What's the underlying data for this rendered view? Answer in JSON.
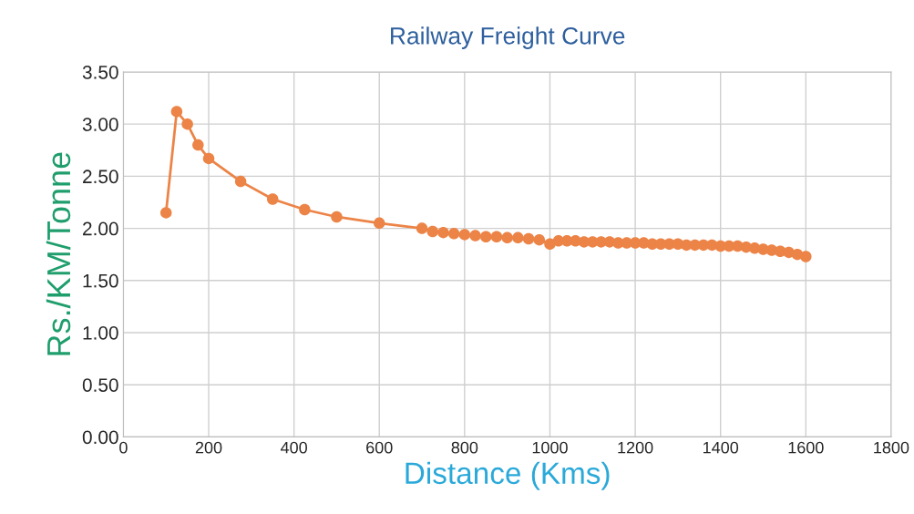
{
  "chart_data": {
    "type": "line",
    "title": "Railway Freight Curve",
    "xlabel": "Distance (Kms)",
    "ylabel": "Rs./KM/Tonne",
    "x": [
      100,
      125,
      150,
      175,
      200,
      275,
      350,
      425,
      500,
      600,
      700,
      725,
      750,
      775,
      800,
      825,
      850,
      875,
      900,
      925,
      950,
      975,
      1000,
      1020,
      1040,
      1060,
      1080,
      1100,
      1120,
      1140,
      1160,
      1180,
      1200,
      1220,
      1240,
      1260,
      1280,
      1300,
      1320,
      1340,
      1360,
      1380,
      1400,
      1420,
      1440,
      1460,
      1480,
      1500,
      1520,
      1540,
      1560,
      1580,
      1600
    ],
    "series": [
      {
        "color": "#ec8447",
        "values": [
          2.15,
          3.12,
          3.0,
          2.8,
          2.67,
          2.45,
          2.28,
          2.18,
          2.11,
          2.05,
          2.0,
          1.97,
          1.96,
          1.95,
          1.94,
          1.93,
          1.92,
          1.92,
          1.91,
          1.91,
          1.9,
          1.89,
          1.85,
          1.88,
          1.88,
          1.88,
          1.87,
          1.87,
          1.87,
          1.87,
          1.86,
          1.86,
          1.86,
          1.86,
          1.85,
          1.85,
          1.85,
          1.85,
          1.84,
          1.84,
          1.84,
          1.84,
          1.83,
          1.83,
          1.83,
          1.82,
          1.81,
          1.8,
          1.79,
          1.78,
          1.77,
          1.75,
          1.73
        ]
      }
    ],
    "xlim": [
      0,
      1800
    ],
    "xticks": [
      0,
      200,
      400,
      600,
      800,
      1000,
      1200,
      1400,
      1600,
      1800
    ],
    "ylim": [
      0,
      3.5
    ],
    "yticks": [
      {
        "value": 0,
        "label": "0.00"
      },
      {
        "value": 0.5,
        "label": "0.50"
      },
      {
        "value": 1,
        "label": "1.00"
      },
      {
        "value": 1.5,
        "label": "1.50"
      },
      {
        "value": 2,
        "label": "2.00"
      },
      {
        "value": 2.5,
        "label": "2.50"
      },
      {
        "value": 3,
        "label": "3.00"
      },
      {
        "value": 3.5,
        "label": "3.50"
      }
    ],
    "grid": true,
    "marker": "circle",
    "line_style": "solid"
  }
}
